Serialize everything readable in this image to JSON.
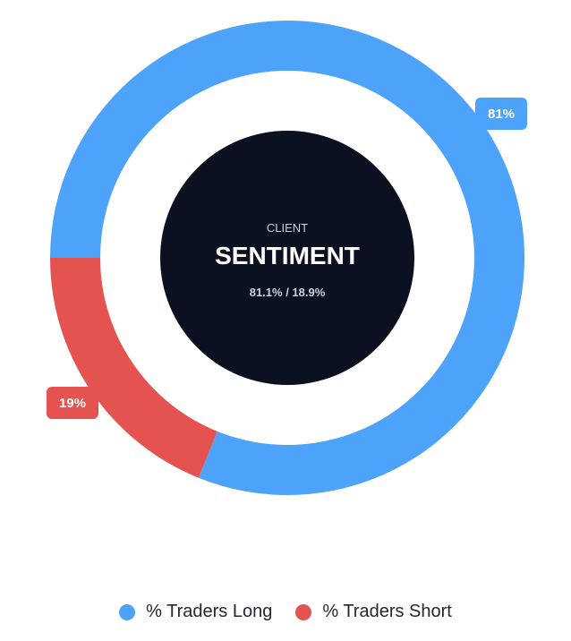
{
  "chart_data": {
    "type": "pie",
    "categories": [
      "% Traders Long",
      "% Traders Short"
    ],
    "values": [
      81.1,
      18.9
    ],
    "colors": [
      "#4da3fa",
      "#e55350"
    ],
    "data_labels": [
      "81%",
      "19%"
    ],
    "legend_placement": "bottom"
  },
  "center": {
    "kicker": "CLIENT",
    "title": "SENTIMENT",
    "ratio": "81.1% / 18.9%",
    "background": "#0b1120"
  },
  "legend": {
    "long": {
      "label": "% Traders Long",
      "color": "#4da3fa"
    },
    "short": {
      "label": "% Traders Short",
      "color": "#e55350"
    }
  }
}
